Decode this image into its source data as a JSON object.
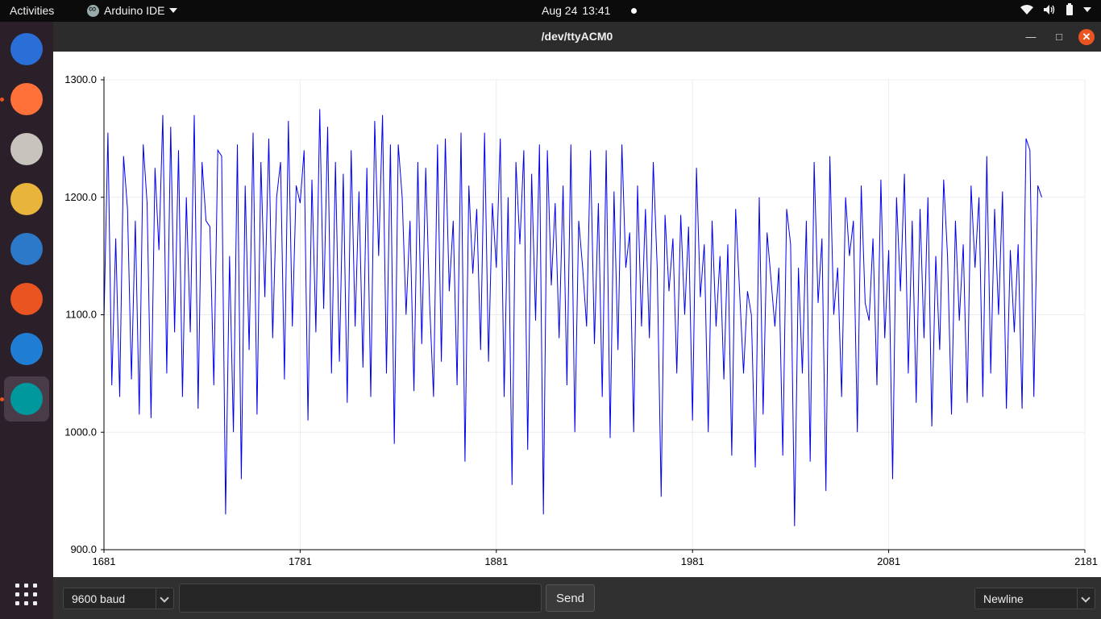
{
  "topbar": {
    "activities": "Activities",
    "app_name": "Arduino IDE",
    "date": "Aug 24",
    "time": "13:41"
  },
  "dock": {
    "items": [
      {
        "name": "thunderbird-icon",
        "color": "#2a6ed8",
        "running": false
      },
      {
        "name": "firefox-icon",
        "color": "#ff7139",
        "running": true
      },
      {
        "name": "files-icon",
        "color": "#c7c3bd",
        "running": false
      },
      {
        "name": "rhythmbox-icon",
        "color": "#e8b43c",
        "running": false
      },
      {
        "name": "writer-icon",
        "color": "#2c79c9",
        "running": false
      },
      {
        "name": "software-icon",
        "color": "#e95420",
        "running": false
      },
      {
        "name": "help-icon",
        "color": "#1f7ed3",
        "running": false
      },
      {
        "name": "arduino-icon",
        "color": "#00979d",
        "running": true,
        "active": true
      }
    ]
  },
  "window": {
    "title": "/dev/ttyACM0"
  },
  "bottombar": {
    "baud": "9600 baud",
    "input_value": "",
    "send_label": "Send",
    "line_ending": "Newline"
  },
  "chart_data": {
    "type": "line",
    "title": "",
    "xlabel": "",
    "ylabel": "",
    "xlim": [
      1681,
      2181
    ],
    "ylim": [
      900,
      1300
    ],
    "x_ticks": [
      "1681",
      "1781",
      "1881",
      "1981",
      "2081",
      "2181"
    ],
    "y_ticks": [
      "1300.0",
      "1200.0",
      "1100.0",
      "1000.0",
      "900.0"
    ],
    "grid": true,
    "color": "#0000ee",
    "series": [
      {
        "x_start": 1681,
        "x_step": 2,
        "values": [
          1095,
          1255,
          1040,
          1165,
          1030,
          1235,
          1190,
          1045,
          1180,
          1015,
          1245,
          1195,
          1012,
          1225,
          1155,
          1270,
          1050,
          1260,
          1085,
          1240,
          1030,
          1200,
          1085,
          1270,
          1020,
          1230,
          1180,
          1175,
          1040,
          1240,
          1235,
          930,
          1150,
          1000,
          1245,
          960,
          1210,
          1070,
          1255,
          1015,
          1230,
          1115,
          1250,
          1080,
          1200,
          1230,
          1045,
          1265,
          1090,
          1210,
          1195,
          1240,
          1010,
          1215,
          1085,
          1275,
          1105,
          1260,
          1050,
          1230,
          1060,
          1220,
          1025,
          1240,
          1090,
          1205,
          1055,
          1225,
          1030,
          1265,
          1150,
          1270,
          1050,
          1245,
          990,
          1245,
          1200,
          1100,
          1180,
          1035,
          1230,
          1075,
          1225,
          1110,
          1030,
          1245,
          1060,
          1250,
          1120,
          1180,
          1040,
          1255,
          975,
          1210,
          1135,
          1190,
          1070,
          1255,
          1060,
          1195,
          1140,
          1250,
          1030,
          1200,
          955,
          1230,
          1160,
          1240,
          985,
          1220,
          1095,
          1245,
          930,
          1240,
          1125,
          1195,
          1080,
          1210,
          1040,
          1245,
          1000,
          1180,
          1140,
          1090,
          1240,
          1075,
          1195,
          1030,
          1240,
          995,
          1205,
          1070,
          1245,
          1140,
          1170,
          1000,
          1210,
          1090,
          1190,
          1080,
          1230,
          1140,
          945,
          1185,
          1120,
          1165,
          1050,
          1185,
          1100,
          1175,
          1010,
          1225,
          1115,
          1160,
          1000,
          1180,
          1090,
          1150,
          1045,
          1160,
          980,
          1190,
          1120,
          1050,
          1120,
          1100,
          970,
          1200,
          1015,
          1170,
          1130,
          1090,
          1140,
          980,
          1190,
          1160,
          920,
          1140,
          1050,
          1180,
          975,
          1230,
          1110,
          1165,
          950,
          1235,
          1100,
          1140,
          1030,
          1200,
          1150,
          1180,
          1000,
          1210,
          1110,
          1095,
          1165,
          1040,
          1215,
          1080,
          1155,
          960,
          1200,
          1120,
          1220,
          1050,
          1180,
          1025,
          1190,
          1080,
          1200,
          1005,
          1150,
          1070,
          1215,
          1150,
          1015,
          1180,
          1095,
          1160,
          1025,
          1210,
          1140,
          1200,
          1030,
          1235,
          1050,
          1190,
          1100,
          1205,
          1020,
          1155,
          1085,
          1160,
          1020,
          1250,
          1240,
          1030,
          1210,
          1200
        ]
      }
    ]
  }
}
